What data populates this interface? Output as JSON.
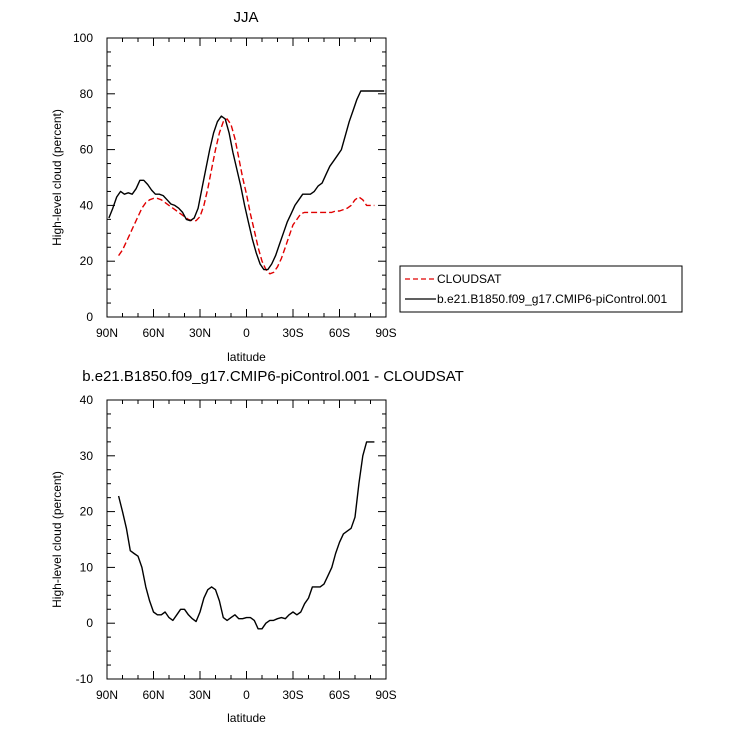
{
  "chart_data": [
    {
      "type": "line",
      "title": "JJA",
      "xlabel": "latitude",
      "ylabel": "High-level cloud (percent)",
      "xlim": [
        -90,
        90
      ],
      "ylim": [
        0,
        100
      ],
      "xticks": [
        -90,
        -60,
        -30,
        0,
        30,
        60,
        90
      ],
      "xtick_labels": [
        "90N",
        "60N",
        "30N",
        "0",
        "30S",
        "60S",
        "90S"
      ],
      "yticks": [
        0,
        20,
        40,
        60,
        80,
        100
      ],
      "ytick_labels": [
        "0",
        "20",
        "40",
        "60",
        "80",
        "100"
      ],
      "legend_position": "right",
      "series": [
        {
          "name": "CLOUDSAT",
          "color": "#e00000",
          "dash": "dashed",
          "x": [
            -82.5,
            -80,
            -77.5,
            -75,
            -72.5,
            -70,
            -67.5,
            -65,
            -62.5,
            -60,
            -57.5,
            -55,
            -52.5,
            -50,
            -47.5,
            -45,
            -42.5,
            -40,
            -37.5,
            -35,
            -32.5,
            -30,
            -27.5,
            -25,
            -22.5,
            -20,
            -17.5,
            -15,
            -12.5,
            -10,
            -7.5,
            -5,
            -2.5,
            0,
            2.5,
            5,
            7.5,
            10,
            12.5,
            15,
            17.5,
            20,
            22.5,
            25,
            27.5,
            30,
            32.5,
            35,
            37.5,
            40,
            42.5,
            45,
            47.5,
            50,
            52.5,
            55,
            57.5,
            60,
            62.5,
            65,
            67.5,
            70,
            72.5,
            75,
            77.5,
            80,
            82.5
          ],
          "y": [
            22,
            24,
            27,
            30,
            33,
            36,
            39,
            41,
            42,
            42.5,
            42.5,
            42,
            41,
            40,
            39,
            38,
            37,
            36,
            35,
            34.5,
            34.5,
            36,
            40,
            46,
            53,
            60,
            66,
            70,
            71,
            69,
            64,
            57,
            50,
            44,
            37,
            31,
            25,
            20,
            17,
            15.5,
            16,
            18,
            21,
            25,
            29,
            33,
            35,
            37,
            37.5,
            37.5,
            37.5,
            37.5,
            37.5,
            37.5,
            37.5,
            37.5,
            38,
            38,
            38.5,
            39,
            40,
            42,
            43,
            42,
            40,
            40,
            40
          ]
        },
        {
          "name": "b.e21.B1850.f09_g17.CMIP6-piControl.001",
          "color": "#000000",
          "dash": "solid",
          "x": [
            -88.75,
            -86.25,
            -83.75,
            -81.25,
            -78.75,
            -76.25,
            -73.75,
            -71.25,
            -68.75,
            -66.25,
            -63.75,
            -61.25,
            -58.75,
            -56.25,
            -53.75,
            -51.25,
            -48.75,
            -46.25,
            -43.75,
            -41.25,
            -38.75,
            -36.25,
            -33.75,
            -31.25,
            -28.75,
            -26.25,
            -23.75,
            -21.25,
            -18.75,
            -16.25,
            -13.75,
            -11.25,
            -8.75,
            -6.25,
            -3.75,
            -1.25,
            1.25,
            3.75,
            6.25,
            8.75,
            11.25,
            13.75,
            16.25,
            18.75,
            21.25,
            23.75,
            26.25,
            28.75,
            31.25,
            33.75,
            36.25,
            38.75,
            41.25,
            43.75,
            46.25,
            48.75,
            51.25,
            53.75,
            56.25,
            58.75,
            61.25,
            63.75,
            66.25,
            68.75,
            71.25,
            73.75,
            76.25,
            78.75,
            81.25,
            83.75,
            86.25,
            88.75
          ],
          "y": [
            35.5,
            39,
            43,
            45,
            44,
            44.5,
            44,
            46,
            49,
            49,
            47.5,
            45.5,
            44,
            44,
            43.5,
            42,
            40.5,
            40,
            39,
            37.5,
            35,
            34.5,
            35.5,
            39,
            46,
            53,
            60,
            66,
            70,
            72,
            71,
            66,
            59,
            53,
            47,
            40,
            34,
            28,
            23,
            19,
            17,
            17,
            19,
            22,
            26,
            30,
            34,
            37,
            40,
            42,
            44,
            44,
            44,
            45,
            47,
            48,
            51,
            54,
            56,
            58,
            60,
            65,
            70,
            74,
            78,
            81,
            81,
            81,
            81,
            81,
            81,
            81
          ]
        }
      ]
    },
    {
      "type": "line",
      "title": "b.e21.B1850.f09_g17.CMIP6-piControl.001 - CLOUDSAT",
      "xlabel": "latitude",
      "ylabel": "High-level cloud (percent)",
      "xlim": [
        -90,
        90
      ],
      "ylim": [
        -10,
        40
      ],
      "xticks": [
        -90,
        -60,
        -30,
        0,
        30,
        60,
        90
      ],
      "xtick_labels": [
        "90N",
        "60N",
        "30N",
        "0",
        "30S",
        "60S",
        "90S"
      ],
      "yticks": [
        -10,
        0,
        10,
        20,
        30,
        40
      ],
      "ytick_labels": [
        "-10",
        "0",
        "10",
        "20",
        "30",
        "40"
      ],
      "series": [
        {
          "color": "#000000",
          "dash": "solid",
          "x": [
            -82.5,
            -80,
            -77.5,
            -75,
            -72.5,
            -70,
            -67.5,
            -65,
            -62.5,
            -60,
            -57.5,
            -55,
            -52.5,
            -50,
            -47.5,
            -45,
            -42.5,
            -40,
            -37.5,
            -35,
            -32.5,
            -30,
            -27.5,
            -25,
            -22.5,
            -20,
            -17.5,
            -15,
            -12.5,
            -10,
            -7.5,
            -5,
            -2.5,
            0,
            2.5,
            5,
            7.5,
            10,
            12.5,
            15,
            17.5,
            20,
            22.5,
            25,
            27.5,
            30,
            32.5,
            35,
            37.5,
            40,
            42.5,
            45,
            47.5,
            50,
            52.5,
            55,
            57.5,
            60,
            62.5,
            65,
            67.5,
            70,
            72.5,
            75,
            77.5,
            80,
            82.5
          ],
          "y": [
            22.8,
            20,
            17,
            13,
            12.5,
            12,
            10,
            6.5,
            4,
            2,
            1.5,
            1.5,
            2,
            1,
            0.5,
            1.5,
            2.5,
            2.5,
            1.5,
            0.8,
            0.3,
            2,
            4.5,
            6,
            6.5,
            6,
            4,
            1,
            0.5,
            1,
            1.5,
            0.8,
            0.8,
            1,
            1,
            0.5,
            -1,
            -1,
            0,
            0.5,
            0.5,
            0.8,
            1,
            0.8,
            1.5,
            2,
            1.5,
            2,
            3.5,
            4.5,
            6.5,
            6.5,
            6.5,
            7,
            8.5,
            10,
            12.5,
            14.5,
            16,
            16.5,
            17,
            19,
            25,
            30,
            32.5,
            32.5,
            32.5
          ]
        }
      ]
    }
  ]
}
